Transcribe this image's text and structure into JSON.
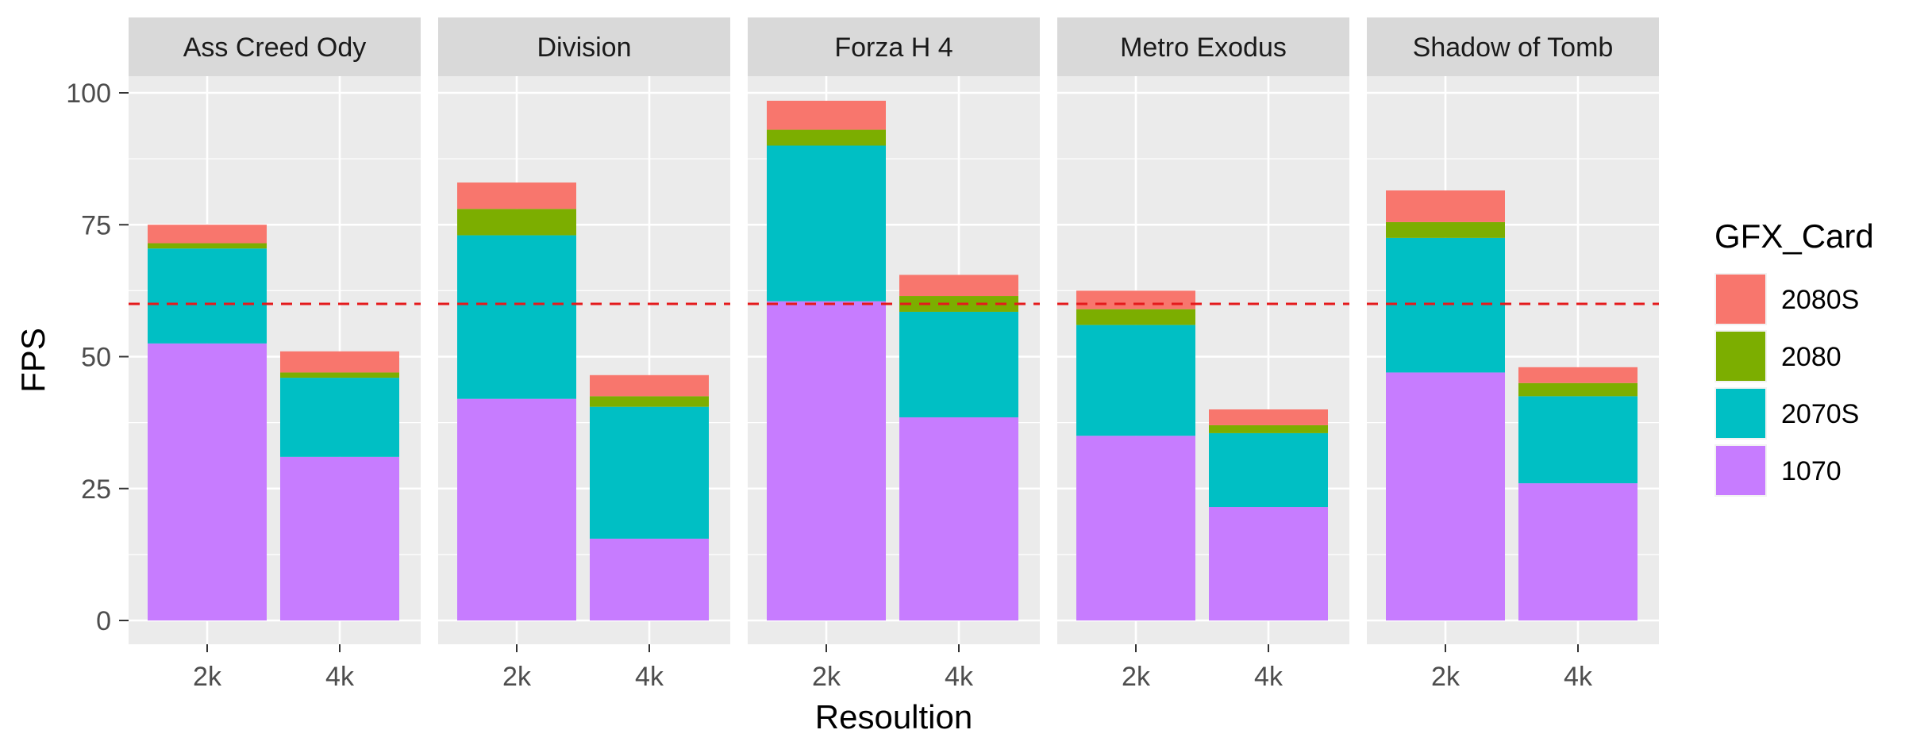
{
  "chart_data": {
    "type": "bar",
    "stacked": true,
    "faceted": true,
    "xlabel": "Resoultion",
    "ylabel": "FPS",
    "ylim": [
      0,
      110
    ],
    "yticks": [
      0,
      25,
      50,
      75,
      100
    ],
    "reference_line": {
      "y": 60,
      "style": "dashed",
      "color": "#e41a1c"
    },
    "categories": [
      "2k",
      "4k"
    ],
    "legend": {
      "title": "GFX_Card",
      "position": "right",
      "entries": [
        {
          "name": "2080S",
          "color": "#f8766d"
        },
        {
          "name": "2080",
          "color": "#7cae00"
        },
        {
          "name": "2070S",
          "color": "#00bfc4"
        },
        {
          "name": "1070",
          "color": "#c77cff"
        }
      ]
    },
    "stack_order_bottom_to_top": [
      "1070",
      "2070S",
      "2080",
      "2080S"
    ],
    "panels": [
      {
        "title": "Ass Creed Ody",
        "series": [
          {
            "name": "1070",
            "values": [
              52.5,
              31
            ]
          },
          {
            "name": "2070S",
            "values": [
              18,
              15
            ]
          },
          {
            "name": "2080",
            "values": [
              1,
              1
            ]
          },
          {
            "name": "2080S",
            "values": [
              3.5,
              4
            ]
          }
        ]
      },
      {
        "title": "Division",
        "series": [
          {
            "name": "1070",
            "values": [
              42,
              15.5
            ]
          },
          {
            "name": "2070S",
            "values": [
              31,
              25
            ]
          },
          {
            "name": "2080",
            "values": [
              5,
              2
            ]
          },
          {
            "name": "2080S",
            "values": [
              5,
              4
            ]
          }
        ]
      },
      {
        "title": "Forza H 4",
        "series": [
          {
            "name": "1070",
            "values": [
              60.5,
              38.5
            ]
          },
          {
            "name": "2070S",
            "values": [
              29.5,
              20
            ]
          },
          {
            "name": "2080",
            "values": [
              3,
              3
            ]
          },
          {
            "name": "2080S",
            "values": [
              5.5,
              4
            ]
          }
        ]
      },
      {
        "title": "Metro Exodus",
        "series": [
          {
            "name": "1070",
            "values": [
              35,
              21.5
            ]
          },
          {
            "name": "2070S",
            "values": [
              21,
              14
            ]
          },
          {
            "name": "2080",
            "values": [
              3,
              1.5
            ]
          },
          {
            "name": "2080S",
            "values": [
              3.5,
              3
            ]
          }
        ]
      },
      {
        "title": "Shadow of Tomb",
        "series": [
          {
            "name": "1070",
            "values": [
              47,
              26
            ]
          },
          {
            "name": "2070S",
            "values": [
              25.5,
              16.5
            ]
          },
          {
            "name": "2080",
            "values": [
              3,
              2.5
            ]
          },
          {
            "name": "2080S",
            "values": [
              6,
              3
            ]
          }
        ]
      }
    ],
    "panel_background": "#ebebeb",
    "strip_background": "#d9d9d9"
  }
}
